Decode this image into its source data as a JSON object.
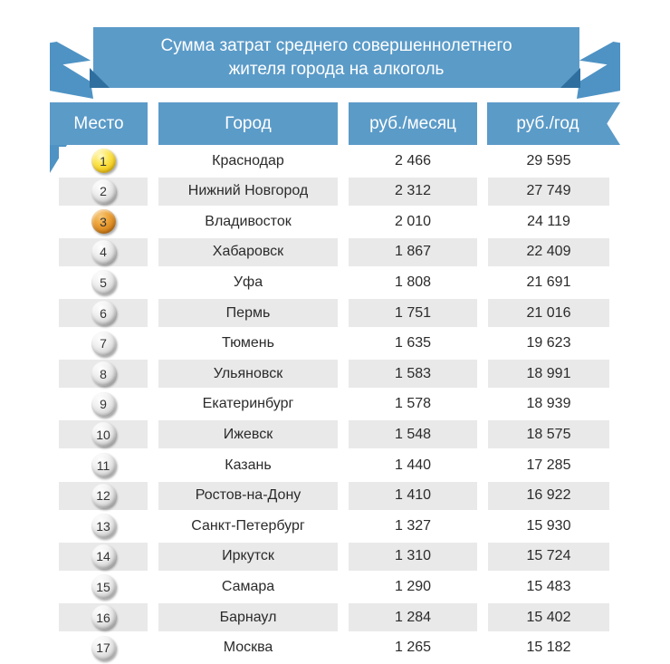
{
  "banner": {
    "title_line1": "Сумма затрат среднего совершеннолетнего",
    "title_line2": "жителя города на алкоголь"
  },
  "table": {
    "headers": {
      "place": "Место",
      "city": "Город",
      "per_month": "руб./месяц",
      "per_year": "руб./год"
    },
    "rows": [
      {
        "rank": "1",
        "city": "Краснодар",
        "per_month": "2 466",
        "per_year": "29 595",
        "medal": "gold"
      },
      {
        "rank": "2",
        "city": "Нижний Новгород",
        "per_month": "2 312",
        "per_year": "27 749",
        "medal": "silver"
      },
      {
        "rank": "3",
        "city": "Владивосток",
        "per_month": "2 010",
        "per_year": "24 119",
        "medal": "bronze"
      },
      {
        "rank": "4",
        "city": "Хабаровск",
        "per_month": "1 867",
        "per_year": "22 409",
        "medal": "silver"
      },
      {
        "rank": "5",
        "city": "Уфа",
        "per_month": "1 808",
        "per_year": "21 691",
        "medal": "silver"
      },
      {
        "rank": "6",
        "city": "Пермь",
        "per_month": "1 751",
        "per_year": "21 016",
        "medal": "silver"
      },
      {
        "rank": "7",
        "city": "Тюмень",
        "per_month": "1 635",
        "per_year": "19 623",
        "medal": "silver"
      },
      {
        "rank": "8",
        "city": "Ульяновск",
        "per_month": "1 583",
        "per_year": "18 991",
        "medal": "silver"
      },
      {
        "rank": "9",
        "city": "Екатеринбург",
        "per_month": "1 578",
        "per_year": "18 939",
        "medal": "silver"
      },
      {
        "rank": "10",
        "city": "Ижевск",
        "per_month": "1 548",
        "per_year": "18 575",
        "medal": "silver"
      },
      {
        "rank": "11",
        "city": "Казань",
        "per_month": "1 440",
        "per_year": "17 285",
        "medal": "silver"
      },
      {
        "rank": "12",
        "city": "Ростов-на-Дону",
        "per_month": "1 410",
        "per_year": "16 922",
        "medal": "silver"
      },
      {
        "rank": "13",
        "city": "Санкт-Петербург",
        "per_month": "1 327",
        "per_year": "15 930",
        "medal": "silver"
      },
      {
        "rank": "14",
        "city": "Иркутск",
        "per_month": "1 310",
        "per_year": "15 724",
        "medal": "silver"
      },
      {
        "rank": "15",
        "city": "Самара",
        "per_month": "1 290",
        "per_year": "15 483",
        "medal": "silver"
      },
      {
        "rank": "16",
        "city": "Барнаул",
        "per_month": "1 284",
        "per_year": "15 402",
        "medal": "silver"
      },
      {
        "rank": "17",
        "city": "Москва",
        "per_month": "1 265",
        "per_year": "15 182",
        "medal": "silver"
      }
    ]
  },
  "colors": {
    "ribbon_blue": "#5b9bc8",
    "ribbon_tail_blue": "#4f93c4",
    "ribbon_fold_dark": "#2f6f9f",
    "row_alt_gray": "#e9e9e9",
    "body_text": "#2b2b2b",
    "header_text": "#ffffff",
    "medal_gold": "#f5cb1c",
    "medal_silver": "#d6d6d6",
    "medal_bronze": "#d5821a"
  },
  "chart_data": {
    "type": "table",
    "title": "Сумма затрат среднего совершеннолетнего жителя города на алкоголь",
    "columns": [
      "Место",
      "Город",
      "руб./месяц",
      "руб./год"
    ],
    "rows": [
      [
        1,
        "Краснодар",
        2466,
        29595
      ],
      [
        2,
        "Нижний Новгород",
        2312,
        27749
      ],
      [
        3,
        "Владивосток",
        2010,
        24119
      ],
      [
        4,
        "Хабаровск",
        1867,
        22409
      ],
      [
        5,
        "Уфа",
        1808,
        21691
      ],
      [
        6,
        "Пермь",
        1751,
        21016
      ],
      [
        7,
        "Тюмень",
        1635,
        19623
      ],
      [
        8,
        "Ульяновск",
        1583,
        18991
      ],
      [
        9,
        "Екатеринбург",
        1578,
        18939
      ],
      [
        10,
        "Ижевск",
        1548,
        18575
      ],
      [
        11,
        "Казань",
        1440,
        17285
      ],
      [
        12,
        "Ростов-на-Дону",
        1410,
        16922
      ],
      [
        13,
        "Санкт-Петербург",
        1327,
        15930
      ],
      [
        14,
        "Иркутск",
        1310,
        15724
      ],
      [
        15,
        "Самара",
        1290,
        15483
      ],
      [
        16,
        "Барнаул",
        1284,
        15402
      ],
      [
        17,
        "Москва",
        1265,
        15182
      ]
    ]
  }
}
